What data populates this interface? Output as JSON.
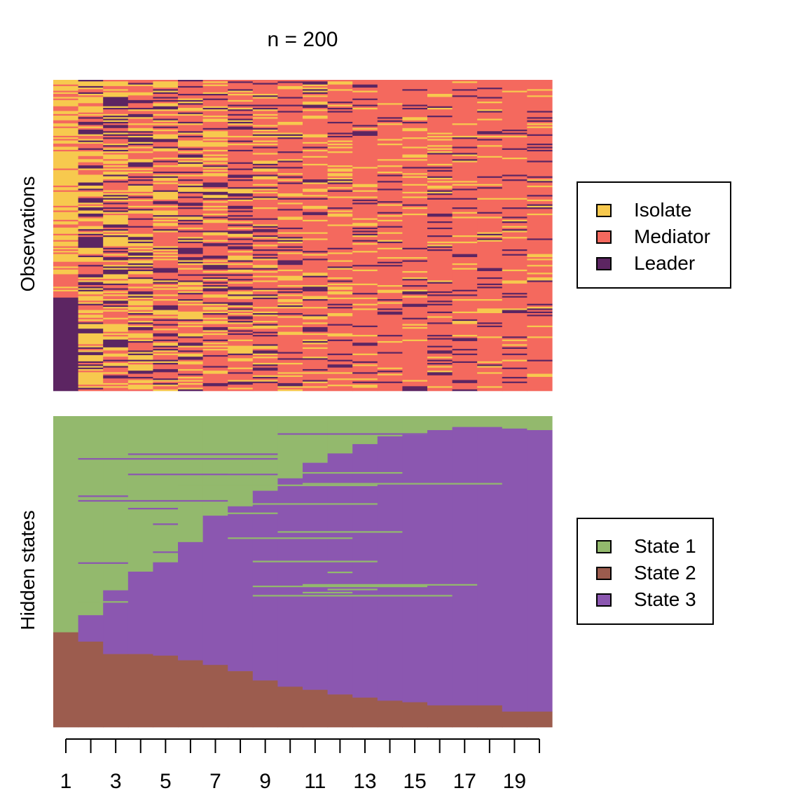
{
  "title": "n = 200",
  "colors": {
    "obs_isolate": "#F7C94E",
    "obs_mediator": "#F4695E",
    "obs_leader": "#5C2562",
    "state1": "#93B96D",
    "state2": "#9C5C4E",
    "state3": "#8B57B0"
  },
  "legends": {
    "observations": [
      {
        "label": "Isolate",
        "color": "#F7C94E"
      },
      {
        "label": "Mediator",
        "color": "#F4695E"
      },
      {
        "label": "Leader",
        "color": "#5C2562"
      }
    ],
    "hidden": [
      {
        "label": "State 1",
        "color": "#93B96D"
      },
      {
        "label": "State 2",
        "color": "#9C5C4E"
      },
      {
        "label": "State 3",
        "color": "#8B57B0"
      }
    ]
  },
  "chart_data": [
    {
      "type": "heatmap",
      "title": "n = 200",
      "ylabel": "Observations",
      "xlabel": "",
      "n_sequences": 200,
      "time_points": [
        1,
        2,
        3,
        4,
        5,
        6,
        7,
        8,
        9,
        10,
        11,
        12,
        13,
        14,
        15,
        16,
        17,
        18,
        19,
        20
      ],
      "categories": [
        "Isolate",
        "Mediator",
        "Leader"
      ],
      "legend_position": "right",
      "approx_leader_share": [
        0.3,
        0.27,
        0.25,
        0.24,
        0.23,
        0.22,
        0.21,
        0.19,
        0.17,
        0.16,
        0.15,
        0.14,
        0.13,
        0.12,
        0.12,
        0.11,
        0.11,
        0.1,
        0.1,
        0.09
      ],
      "approx_isolate_share": [
        0.55,
        0.45,
        0.4,
        0.35,
        0.3,
        0.28,
        0.26,
        0.24,
        0.22,
        0.2,
        0.18,
        0.16,
        0.14,
        0.13,
        0.12,
        0.11,
        0.1,
        0.1,
        0.09,
        0.09
      ]
    },
    {
      "type": "area",
      "ylabel": "Hidden states",
      "xlabel": "",
      "n_sequences": 200,
      "x": [
        1,
        2,
        3,
        4,
        5,
        6,
        7,
        8,
        9,
        10,
        11,
        12,
        13,
        14,
        15,
        16,
        17,
        18,
        19,
        20
      ],
      "xticklabels": [
        "1",
        "3",
        "5",
        "7",
        "9",
        "11",
        "13",
        "15",
        "17",
        "19"
      ],
      "legend_position": "right",
      "series": [
        {
          "name": "State 1",
          "values": [
            139,
            128,
            112,
            100,
            94,
            82,
            64,
            58,
            48,
            40,
            30,
            24,
            18,
            13,
            12,
            9,
            7,
            7,
            8,
            9
          ]
        },
        {
          "name": "State 2",
          "values": [
            61,
            55,
            47,
            47,
            46,
            43,
            40,
            36,
            30,
            26,
            24,
            21,
            19,
            17,
            16,
            14,
            14,
            14,
            10,
            10
          ]
        },
        {
          "name": "State 3",
          "values": [
            0,
            17,
            41,
            53,
            60,
            75,
            96,
            106,
            122,
            134,
            146,
            155,
            163,
            170,
            172,
            177,
            179,
            179,
            182,
            181
          ]
        }
      ]
    }
  ]
}
